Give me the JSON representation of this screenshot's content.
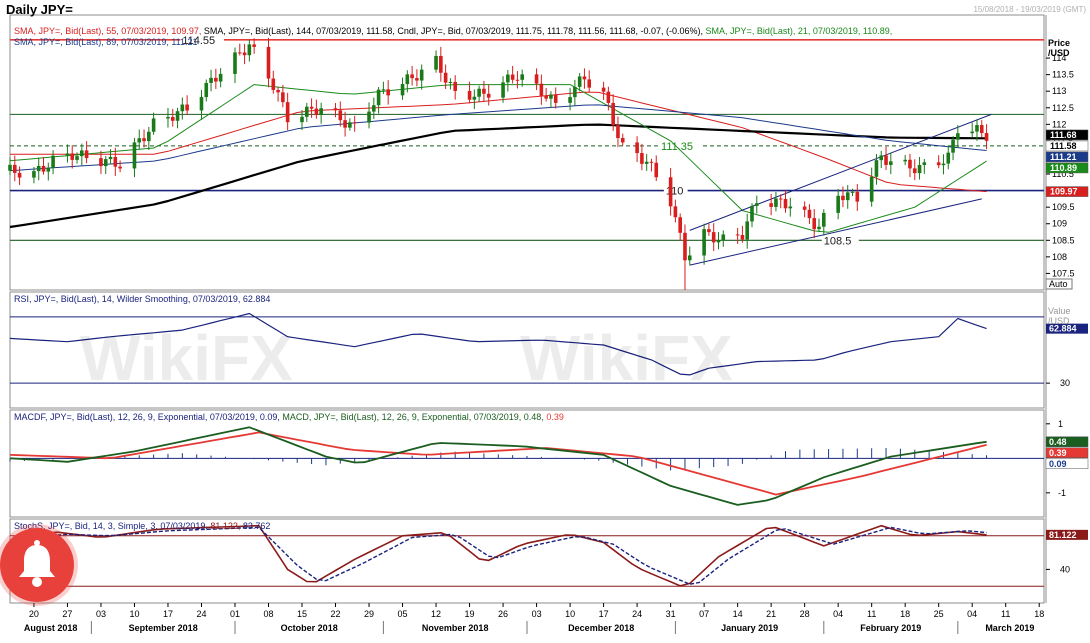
{
  "window": {
    "title": "Daily JPY=",
    "date_range": "15/08/2018 - 19/03/2019 (GMT)"
  },
  "colors": {
    "up": "#1a7a1a",
    "down": "#d81e1e",
    "sma55": "#d81e1e",
    "sma144": "#000000",
    "sma21": "#1a8a1a",
    "sma89": "#1a3a8a",
    "rsi": "#1a237e",
    "macd": "#1b5e20",
    "signal": "#e53935",
    "hist": "#1a3a8a",
    "stoch_k": "#8b1a1a",
    "stoch_d": "#1a237e",
    "hline_red": "#e53935",
    "hline_green": "#1b5e20",
    "hline_navy": "#1a237e",
    "trend": "#1a237e",
    "bell": "#e8413c"
  },
  "icons": {
    "notification": "bell-icon",
    "watermark": "wikifx-logo"
  },
  "price_panel": {
    "legend_line1": [
      {
        "text": "SMA, JPY=, Bid(Last),  55, 07/03/2019, 109.97,",
        "color": "#d81e1e"
      },
      {
        "text": "SMA, JPY=, Bid(Last),  144, 07/03/2019, 111.58,",
        "color": "#000000"
      },
      {
        "text": "Cndl, JPY=, Bid, 07/03/2019, 111.75, 111.78, 111.56, 111.68, -0.07, (-0.06%),",
        "color": "#000000"
      },
      {
        "text": "SMA, JPY=, Bid(Last),  21, 07/03/2019, 110.89,",
        "color": "#1a8a1a"
      }
    ],
    "legend_line2": {
      "text": "SMA, JPY=, Bid(Last),  89, 07/03/2019, 111.21",
      "color": "#1a3a8a"
    },
    "axis_title": "Price\n/USD",
    "auto_label": "Auto",
    "level_labels": [
      "114.55",
      "111.35",
      "110",
      "108.5"
    ],
    "value_tags": [
      {
        "value": "111.68",
        "bg": "#000000",
        "fg": "#ffffff"
      },
      {
        "value": "111.58",
        "bg": "#ffffff",
        "fg": "#000000"
      },
      {
        "value": "111.21",
        "bg": "#1a3a8a",
        "fg": "#ffffff"
      },
      {
        "value": "110.89",
        "bg": "#1a8a1a",
        "fg": "#ffffff"
      },
      {
        "value": "109.97",
        "bg": "#d81e1e",
        "fg": "#ffffff"
      }
    ]
  },
  "rsi_panel": {
    "legend": {
      "text": "RSI, JPY=, Bid(Last),  14, Wilder Smoothing, 07/03/2019, 62.884",
      "color": "#1a237e"
    },
    "axis_title": "Value\n/USD",
    "value_tag": "62.884",
    "tick_label": "30"
  },
  "macd_panel": {
    "legend": [
      {
        "text": "MACDF, JPY=, Bid(Last),  12, 26, 9, Exponential, 07/03/2019, 0.09,",
        "color": "#1a237e"
      },
      {
        "text": "MACD, JPY=, Bid(Last),  12, 26, 9, Exponential, 07/03/2019,",
        "color": "#1b5e20"
      },
      {
        "text": "0.48,",
        "color": "#1b5e20"
      },
      {
        "text": "0.39",
        "color": "#e53935"
      }
    ],
    "tick_labels": [
      "1",
      "-1"
    ],
    "value_tags": [
      {
        "value": "0.48",
        "bg": "#1b5e20",
        "fg": "#ffffff"
      },
      {
        "value": "0.39",
        "bg": "#e53935",
        "fg": "#ffffff"
      },
      {
        "value": "0.09",
        "bg": "#ffffff",
        "fg": "#1a3a8a"
      }
    ]
  },
  "stoch_panel": {
    "legend": [
      {
        "text": "StochS, JPY=, Bid,  14, 3, Simple, 3, 07/03/2019,",
        "color": "#1a237e"
      },
      {
        "text": "81.122,",
        "color": "#8b1a1a"
      },
      {
        "text": "83.762",
        "color": "#1a237e"
      }
    ],
    "tick_label": "40",
    "value_tag": "81.122"
  },
  "x_axis": {
    "day_ticks": [
      "20",
      "27",
      "03",
      "10",
      "17",
      "24",
      "01",
      "08",
      "15",
      "22",
      "29",
      "05",
      "12",
      "19",
      "26",
      "03",
      "10",
      "17",
      "24",
      "31",
      "07",
      "14",
      "21",
      "28",
      "04",
      "11",
      "18",
      "25",
      "04",
      "11",
      "18"
    ],
    "months": [
      "August 2018",
      "September 2018",
      "October 2018",
      "November 2018",
      "December 2018",
      "January 2019",
      "February 2019",
      "March 2019"
    ]
  },
  "chart_data": [
    {
      "type": "candlestick",
      "title": "Daily JPY=",
      "ylabel": "Price /USD",
      "ylim": [
        107,
        115.3
      ],
      "y_ticks": [
        107.5,
        108,
        108.5,
        109,
        109.5,
        110,
        110.5,
        111,
        111.5,
        112,
        112.5,
        113,
        113.5,
        114
      ],
      "x_start": "2018-08-15",
      "x_end": "2019-03-19",
      "horizontal_levels": [
        114.55,
        112.3,
        111.35,
        110.0,
        108.5
      ],
      "trend_channel": {
        "lower": [
          [
            "2019-01-04",
            107.75
          ],
          [
            "2019-03-06",
            109.75
          ]
        ],
        "upper": [
          [
            "2019-01-04",
            108.8
          ],
          [
            "2019-03-08",
            112.3
          ]
        ]
      },
      "anchors": [
        [
          "2018-08-15",
          110.6
        ],
        [
          "2018-08-20",
          110.5
        ],
        [
          "2018-08-24",
          110.9
        ],
        [
          "2018-08-28",
          111.1
        ],
        [
          "2018-08-31",
          111.0
        ],
        [
          "2018-09-07",
          110.8
        ],
        [
          "2018-09-14",
          112.0
        ],
        [
          "2018-09-21",
          112.5
        ],
        [
          "2018-09-28",
          113.6
        ],
        [
          "2018-10-04",
          114.4
        ],
        [
          "2018-10-09",
          113.2
        ],
        [
          "2018-10-12",
          112.2
        ],
        [
          "2018-10-19",
          112.5
        ],
        [
          "2018-10-26",
          111.9
        ],
        [
          "2018-10-31",
          112.9
        ],
        [
          "2018-11-07",
          113.4
        ],
        [
          "2018-11-12",
          113.9
        ],
        [
          "2018-11-16",
          112.9
        ],
        [
          "2018-11-22",
          112.9
        ],
        [
          "2018-11-29",
          113.5
        ],
        [
          "2018-12-04",
          113.0
        ],
        [
          "2018-12-07",
          112.6
        ],
        [
          "2018-12-13",
          113.4
        ],
        [
          "2018-12-17",
          112.9
        ],
        [
          "2018-12-21",
          111.3
        ],
        [
          "2018-12-26",
          110.9
        ],
        [
          "2018-12-31",
          109.7
        ],
        [
          "2019-01-03",
          108.0
        ],
        [
          "2019-01-07",
          108.7
        ],
        [
          "2019-01-11",
          108.5
        ],
        [
          "2019-01-15",
          108.7
        ],
        [
          "2019-01-18",
          109.7
        ],
        [
          "2019-01-25",
          109.6
        ],
        [
          "2019-01-31",
          108.9
        ],
        [
          "2019-02-04",
          109.9
        ],
        [
          "2019-02-08",
          109.8
        ],
        [
          "2019-02-13",
          111.0
        ],
        [
          "2019-02-19",
          110.7
        ],
        [
          "2019-02-22",
          110.7
        ],
        [
          "2019-02-27",
          111.0
        ],
        [
          "2019-03-01",
          111.9
        ],
        [
          "2019-03-05",
          111.8
        ],
        [
          "2019-03-07",
          111.68
        ]
      ],
      "series": [
        {
          "name": "SMA 55",
          "last": 109.97,
          "points": [
            [
              "2018-08-15",
              111.1
            ],
            [
              "2018-09-15",
              111.1
            ],
            [
              "2018-10-15",
              112.4
            ],
            [
              "2018-11-15",
              112.6
            ],
            [
              "2018-12-15",
              113.0
            ],
            [
              "2019-01-15",
              111.9
            ],
            [
              "2019-02-01",
              111.0
            ],
            [
              "2019-02-15",
              110.2
            ],
            [
              "2019-03-07",
              109.97
            ]
          ]
        },
        {
          "name": "SMA 144",
          "last": 111.58,
          "points": [
            [
              "2018-08-15",
              108.9
            ],
            [
              "2018-09-15",
              109.6
            ],
            [
              "2018-10-15",
              110.9
            ],
            [
              "2018-11-15",
              111.8
            ],
            [
              "2018-12-15",
              112.0
            ],
            [
              "2019-01-15",
              111.8
            ],
            [
              "2019-02-15",
              111.6
            ],
            [
              "2019-03-07",
              111.58
            ]
          ]
        },
        {
          "name": "SMA 21",
          "last": 110.89,
          "points": [
            [
              "2018-08-15",
              110.9
            ],
            [
              "2018-09-15",
              111.3
            ],
            [
              "2018-10-05",
              113.2
            ],
            [
              "2018-10-25",
              112.9
            ],
            [
              "2018-11-15",
              113.2
            ],
            [
              "2018-12-10",
              113.2
            ],
            [
              "2018-12-31",
              111.5
            ],
            [
              "2019-01-15",
              109.4
            ],
            [
              "2019-02-01",
              108.7
            ],
            [
              "2019-02-20",
              109.5
            ],
            [
              "2019-03-07",
              110.89
            ]
          ]
        },
        {
          "name": "SMA 89",
          "last": 111.21,
          "points": [
            [
              "2018-08-15",
              110.6
            ],
            [
              "2018-09-15",
              110.9
            ],
            [
              "2018-10-15",
              111.9
            ],
            [
              "2018-11-15",
              112.3
            ],
            [
              "2018-12-15",
              112.6
            ],
            [
              "2019-01-15",
              112.2
            ],
            [
              "2019-02-15",
              111.5
            ],
            [
              "2019-03-07",
              111.21
            ]
          ]
        }
      ]
    },
    {
      "type": "line",
      "title": "RSI, JPY=, Bid(Last), 14, Wilder Smoothing",
      "ylim": [
        15,
        85
      ],
      "y_ticks": [
        30
      ],
      "levels": [
        70,
        30
      ],
      "series": [
        {
          "name": "RSI 14",
          "last": 62.884,
          "points": [
            [
              "2018-08-15",
              57
            ],
            [
              "2018-08-27",
              55
            ],
            [
              "2018-09-05",
              58
            ],
            [
              "2018-09-20",
              62
            ],
            [
              "2018-10-04",
              72
            ],
            [
              "2018-10-12",
              58
            ],
            [
              "2018-10-26",
              52
            ],
            [
              "2018-11-08",
              60
            ],
            [
              "2018-11-20",
              55
            ],
            [
              "2018-12-04",
              56
            ],
            [
              "2018-12-17",
              53
            ],
            [
              "2018-12-27",
              44
            ],
            [
              "2019-01-03",
              34
            ],
            [
              "2019-01-08",
              39
            ],
            [
              "2019-01-18",
              43
            ],
            [
              "2019-01-31",
              44
            ],
            [
              "2019-02-06",
              49
            ],
            [
              "2019-02-15",
              55
            ],
            [
              "2019-02-25",
              58
            ],
            [
              "2019-03-01",
              69
            ],
            [
              "2019-03-07",
              62.884
            ]
          ]
        }
      ]
    },
    {
      "type": "line",
      "title": "MACD, JPY=, Bid(Last), 12, 26, 9, Exponential",
      "ylim": [
        -1.7,
        1.4
      ],
      "y_ticks": [
        1,
        -1
      ],
      "series": [
        {
          "name": "MACD",
          "last": 0.48,
          "points": [
            [
              "2018-08-15",
              0.0
            ],
            [
              "2018-08-27",
              -0.1
            ],
            [
              "2018-09-10",
              0.2
            ],
            [
              "2018-10-04",
              0.9
            ],
            [
              "2018-10-20",
              0.05
            ],
            [
              "2018-10-27",
              -0.15
            ],
            [
              "2018-11-12",
              0.45
            ],
            [
              "2018-11-30",
              0.35
            ],
            [
              "2018-12-17",
              0.1
            ],
            [
              "2018-12-31",
              -0.8
            ],
            [
              "2019-01-14",
              -1.35
            ],
            [
              "2019-01-21",
              -1.2
            ],
            [
              "2019-02-01",
              -0.55
            ],
            [
              "2019-02-15",
              0.05
            ],
            [
              "2019-03-07",
              0.48
            ]
          ]
        },
        {
          "name": "Signal",
          "last": 0.39,
          "points": [
            [
              "2018-08-15",
              0.1
            ],
            [
              "2018-09-05",
              0.0
            ],
            [
              "2018-10-06",
              0.75
            ],
            [
              "2018-10-25",
              0.25
            ],
            [
              "2018-11-10",
              0.1
            ],
            [
              "2018-12-05",
              0.3
            ],
            [
              "2018-12-24",
              0.05
            ],
            [
              "2019-01-22",
              -1.05
            ],
            [
              "2019-02-08",
              -0.55
            ],
            [
              "2019-03-07",
              0.39
            ]
          ]
        },
        {
          "name": "MACDF",
          "last": 0.09,
          "type": "bar",
          "points": [
            [
              "2018-08-15",
              -0.1
            ],
            [
              "2018-09-20",
              0.15
            ],
            [
              "2018-10-20",
              -0.2
            ],
            [
              "2018-11-15",
              0.2
            ],
            [
              "2018-12-15",
              -0.05
            ],
            [
              "2018-12-31",
              -0.35
            ],
            [
              "2019-01-14",
              -0.2
            ],
            [
              "2019-01-25",
              0.25
            ],
            [
              "2019-02-15",
              0.3
            ],
            [
              "2019-03-07",
              0.09
            ]
          ]
        }
      ]
    },
    {
      "type": "line",
      "title": "StochS, JPY=, Bid, 14, 3, Simple, 3",
      "ylim": [
        0,
        100
      ],
      "y_ticks": [
        40
      ],
      "levels": [
        80,
        20
      ],
      "series": [
        {
          "name": "%K",
          "last": 81.122,
          "points": [
            [
              "2018-08-15",
              72
            ],
            [
              "2018-08-24",
              85
            ],
            [
              "2018-09-03",
              78
            ],
            [
              "2018-09-15",
              88
            ],
            [
              "2018-10-06",
              92
            ],
            [
              "2018-10-12",
              40
            ],
            [
              "2018-10-17",
              22
            ],
            [
              "2018-10-26",
              52
            ],
            [
              "2018-11-05",
              80
            ],
            [
              "2018-11-14",
              84
            ],
            [
              "2018-11-22",
              48
            ],
            [
              "2018-11-30",
              70
            ],
            [
              "2018-12-10",
              82
            ],
            [
              "2018-12-17",
              72
            ],
            [
              "2018-12-24",
              42
            ],
            [
              "2019-01-03",
              18
            ],
            [
              "2019-01-10",
              55
            ],
            [
              "2019-01-21",
              92
            ],
            [
              "2019-02-01",
              68
            ],
            [
              "2019-02-13",
              92
            ],
            [
              "2019-02-20",
              80
            ],
            [
              "2019-03-01",
              85
            ],
            [
              "2019-03-07",
              81.122
            ]
          ]
        },
        {
          "name": "%D",
          "last": 83.762,
          "points": [
            [
              "2018-08-15",
              70
            ],
            [
              "2018-08-26",
              82
            ],
            [
              "2018-09-05",
              80
            ],
            [
              "2018-09-17",
              86
            ],
            [
              "2018-10-06",
              90
            ],
            [
              "2018-10-14",
              45
            ],
            [
              "2018-10-19",
              24
            ],
            [
              "2018-10-28",
              48
            ],
            [
              "2018-11-07",
              78
            ],
            [
              "2018-11-16",
              82
            ],
            [
              "2018-11-24",
              52
            ],
            [
              "2018-12-02",
              68
            ],
            [
              "2018-12-12",
              80
            ],
            [
              "2018-12-19",
              70
            ],
            [
              "2018-12-26",
              44
            ],
            [
              "2019-01-05",
              20
            ],
            [
              "2019-01-12",
              52
            ],
            [
              "2019-01-23",
              90
            ],
            [
              "2019-02-03",
              70
            ],
            [
              "2019-02-15",
              90
            ],
            [
              "2019-02-22",
              82
            ],
            [
              "2019-03-03",
              86
            ],
            [
              "2019-03-07",
              83.762
            ]
          ]
        }
      ]
    }
  ]
}
